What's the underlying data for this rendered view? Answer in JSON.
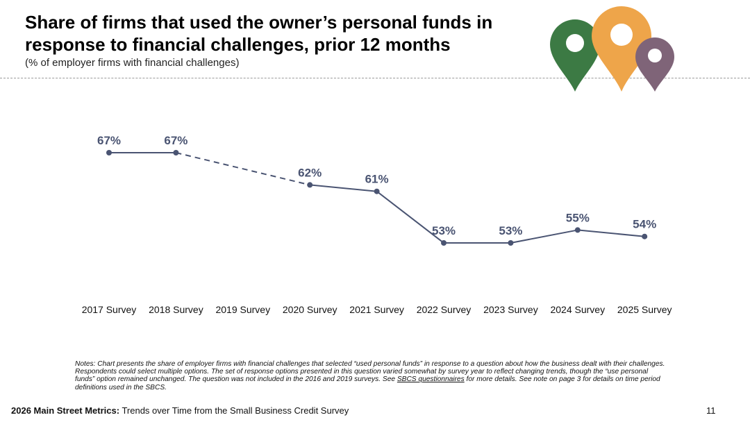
{
  "header": {
    "title": "Share of firms that used the owner’s personal funds in response to financial challenges, prior 12 months",
    "subtitle": "(% of employer firms with financial challenges)"
  },
  "colors": {
    "line": "#4a5472",
    "label": "#4a5472",
    "pin_green": "#3c7a44",
    "pin_orange": "#eea54a",
    "pin_purple": "#7f6478"
  },
  "icons": [
    "map-pin-green-icon",
    "map-pin-orange-icon",
    "map-pin-purple-icon"
  ],
  "chart_data": {
    "type": "line",
    "title": "Share of firms that used the owner’s personal funds in response to financial challenges, prior 12 months",
    "ylabel": "% of employer firms with financial challenges",
    "xlabel": "",
    "categories": [
      "2017 Survey",
      "2018 Survey",
      "2019 Survey",
      "2020 Survey",
      "2021 Survey",
      "2022 Survey",
      "2023 Survey",
      "2024 Survey",
      "2025 Survey"
    ],
    "values": [
      67,
      67,
      null,
      62,
      61,
      53,
      53,
      55,
      54
    ],
    "data_labels": [
      "67%",
      "67%",
      "",
      "62%",
      "61%",
      "53%",
      "53%",
      "55%",
      "54%"
    ],
    "gap_style": "dashed line bridges missing 2019 Survey",
    "ylim": [
      45,
      75
    ],
    "grid": false,
    "legend": "none"
  },
  "notes": {
    "text_before_link": "Notes: Chart presents the share of employer firms with financial challenges that selected “used personal funds” in response to a question about how the business dealt with their challenges. Respondents could select multiple options. The set of response options presented in this question varied somewhat by survey year to reflect changing trends, though the “use personal funds” option remained unchanged. The question was not included in the 2016 and 2019 surveys. See ",
    "link_text": "SBCS questionnaires",
    "text_after_link": " for more details. See note on page 3 for details on time period definitions used in the SBCS."
  },
  "footer": {
    "bold": "2026 Main Street Metrics:",
    "text": " Trends over Time from the Small Business Credit Survey",
    "page_number": "11"
  }
}
